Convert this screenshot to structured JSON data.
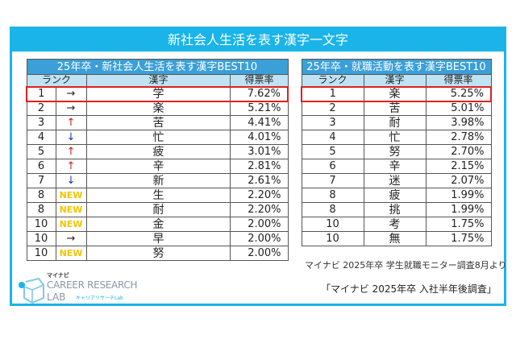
{
  "title": "新社会人生活を表す漢字一文字",
  "left_table": {
    "caption": "25年卒・新社会人生活を表す漢字BEST10",
    "headers": [
      "ランク",
      "漢字",
      "得票率"
    ],
    "rows": [
      {
        "rank": "1",
        "trend": "→",
        "trend_type": "same",
        "kanji": "学",
        "rate": "7.62%",
        "highlight": true
      },
      {
        "rank": "2",
        "trend": "→",
        "trend_type": "same",
        "kanji": "楽",
        "rate": "5.21%"
      },
      {
        "rank": "3",
        "trend": "↑",
        "trend_type": "up",
        "kanji": "苦",
        "rate": "4.41%"
      },
      {
        "rank": "4",
        "trend": "↓",
        "trend_type": "down",
        "kanji": "忙",
        "rate": "4.01%"
      },
      {
        "rank": "5",
        "trend": "↑",
        "trend_type": "up",
        "kanji": "疲",
        "rate": "3.01%"
      },
      {
        "rank": "6",
        "trend": "↑",
        "trend_type": "up",
        "kanji": "辛",
        "rate": "2.81%"
      },
      {
        "rank": "7",
        "trend": "↓",
        "trend_type": "down",
        "kanji": "新",
        "rate": "2.61%"
      },
      {
        "rank": "8",
        "trend": "NEW",
        "trend_type": "new",
        "kanji": "生",
        "rate": "2.20%"
      },
      {
        "rank": "8",
        "trend": "NEW",
        "trend_type": "new",
        "kanji": "耐",
        "rate": "2.20%"
      },
      {
        "rank": "10",
        "trend": "NEW",
        "trend_type": "new",
        "kanji": "金",
        "rate": "2.00%"
      },
      {
        "rank": "10",
        "trend": "→",
        "trend_type": "same",
        "kanji": "早",
        "rate": "2.00%"
      },
      {
        "rank": "10",
        "trend": "NEW",
        "trend_type": "new",
        "kanji": "努",
        "rate": "2.00%"
      }
    ]
  },
  "right_table": {
    "caption": "25年卒・就職活動を表す漢字BEST10",
    "headers": [
      "ランク",
      "漢字",
      "得票率"
    ],
    "rows": [
      {
        "rank": "1",
        "kanji": "楽",
        "rate": "5.25%",
        "highlight": true
      },
      {
        "rank": "2",
        "kanji": "苦",
        "rate": "5.01%"
      },
      {
        "rank": "3",
        "kanji": "耐",
        "rate": "3.98%"
      },
      {
        "rank": "4",
        "kanji": "忙",
        "rate": "2.78%"
      },
      {
        "rank": "5",
        "kanji": "努",
        "rate": "2.70%"
      },
      {
        "rank": "6",
        "kanji": "辛",
        "rate": "2.15%"
      },
      {
        "rank": "7",
        "kanji": "迷",
        "rate": "2.07%"
      },
      {
        "rank": "8",
        "kanji": "疲",
        "rate": "1.99%"
      },
      {
        "rank": "8",
        "kanji": "挑",
        "rate": "1.99%"
      },
      {
        "rank": "10",
        "kanji": "考",
        "rate": "1.75%"
      },
      {
        "rank": "10",
        "kanji": "無",
        "rate": "1.75%"
      }
    ]
  },
  "note": "マイナビ 2025年卒 学生就職モニター調査8月より",
  "source": "「マイナビ 2025年卒 入社半年後調査」",
  "logo": {
    "brand": "マイナビ",
    "line1": "CAREER RESEARCH",
    "line2": "LAB",
    "sub": "キャリアリサーチLab"
  },
  "colors": {
    "accent": "#1ab4e8",
    "caption_bg": "#3b9fd8",
    "header_bg": "#bfe3f3",
    "highlight": "#e02020",
    "up": "#d01818",
    "down": "#1a2ed0",
    "new": "#f5c400"
  }
}
